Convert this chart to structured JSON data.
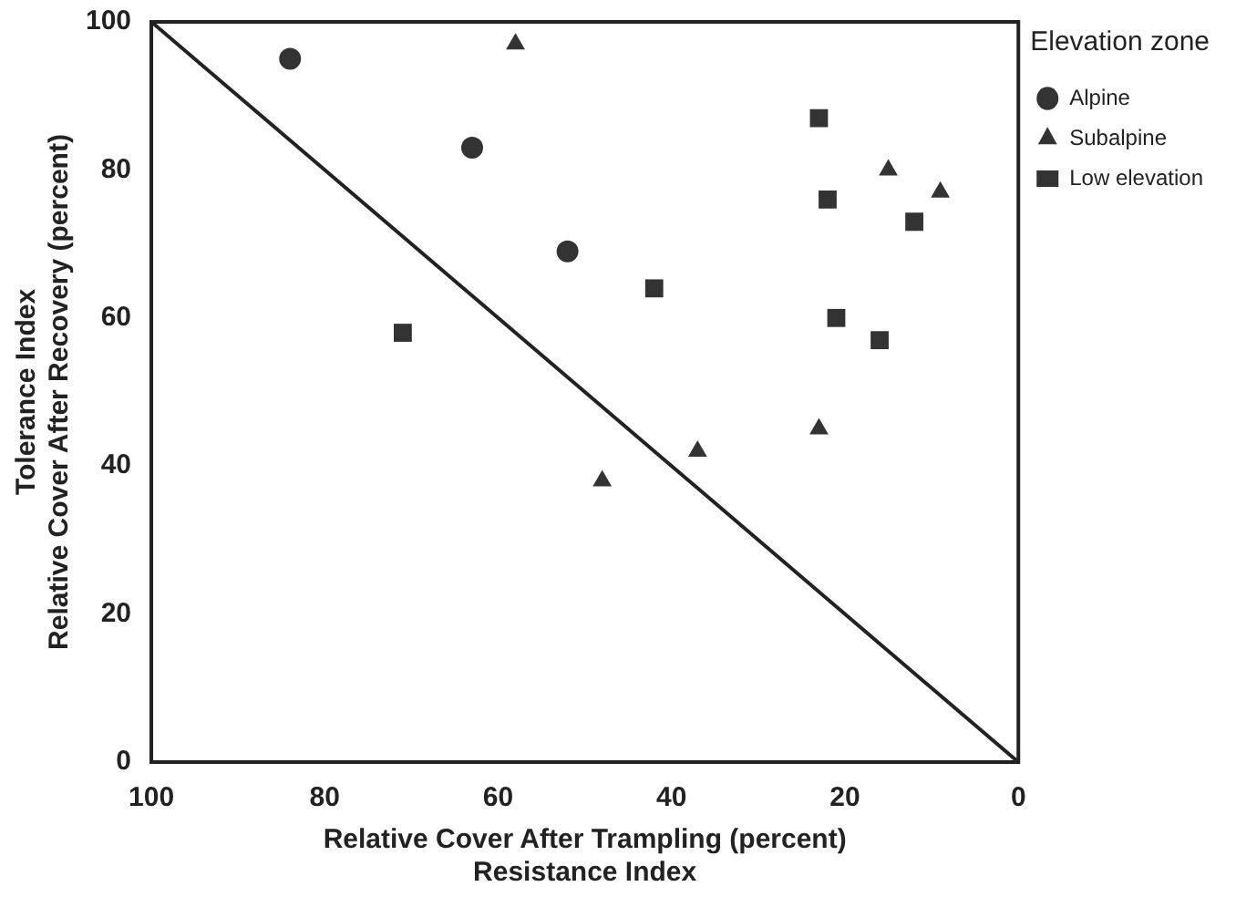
{
  "chart_data": {
    "type": "scatter",
    "xlabel": "Relative Cover After Trampling (percent)\nResistance Index",
    "ylabel": "Tolerance Index\nRelative Cover After Recovery (percent)",
    "legend_title": "Elevation zone",
    "legend": "top right",
    "grid": false,
    "xlim": [
      100,
      0
    ],
    "xticks": [
      100,
      80,
      60,
      40,
      20,
      0
    ],
    "ylim": [
      0,
      100
    ],
    "yticks": [
      0,
      20,
      40,
      60,
      80,
      100
    ],
    "series": [
      {
        "name": "Alpine",
        "color": "#333333",
        "marker": "circle",
        "x": [
          84,
          63,
          52
        ],
        "values": [
          95,
          83,
          69
        ]
      },
      {
        "name": "Subalpine",
        "color": "#333333",
        "marker": "triangle",
        "x": [
          58,
          15,
          9,
          23,
          37,
          48
        ],
        "values": [
          97,
          80,
          77,
          45,
          42,
          38
        ]
      },
      {
        "name": "Low elevation",
        "color": "#333333",
        "marker": "square",
        "x": [
          23,
          22,
          12,
          42,
          71,
          21,
          16
        ],
        "values": [
          87,
          76,
          73,
          64,
          58,
          60,
          57
        ]
      },
      {
        "type": "line",
        "color": "#222222",
        "marker": "none",
        "x": [
          100,
          0
        ],
        "values": [
          100,
          0
        ]
      }
    ]
  }
}
